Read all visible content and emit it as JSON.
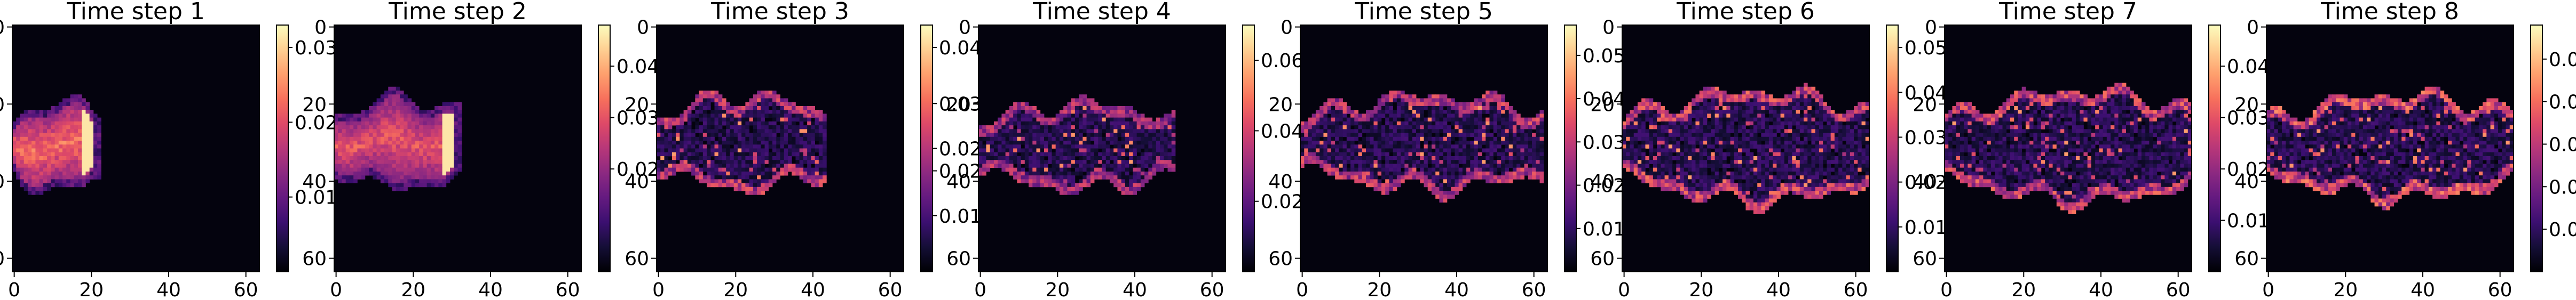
{
  "chart_data": {
    "type": "heatmap",
    "colormap": "magma",
    "grid": false,
    "panels": [
      {
        "title": "Time step 1",
        "xticks": [
          "0",
          "20",
          "40",
          "60"
        ],
        "yticks": [
          "0",
          "20",
          "40",
          "60"
        ],
        "xlim": [
          -0.5,
          63.5
        ],
        "ylim": [
          63.5,
          -0.5
        ],
        "colorbar_ticks": [
          "0.01",
          "0.02",
          "0.03"
        ],
        "colorbar_tick_values": [
          0.01,
          0.02,
          0.03
        ],
        "colorbar_range": [
          0.0,
          0.033
        ],
        "plume": {
          "centroid_x": 6,
          "centroid_y": 31,
          "front_x": 20,
          "half_width": 9,
          "intensity": 0.88,
          "type": "blob"
        }
      },
      {
        "title": "Time step 2",
        "xticks": [
          "0",
          "20",
          "40",
          "60"
        ],
        "yticks": [
          "0",
          "20",
          "40",
          "60"
        ],
        "xlim": [
          -0.5,
          63.5
        ],
        "ylim": [
          63.5,
          -0.5
        ],
        "colorbar_ticks": [
          "0.02",
          "0.03",
          "0.04"
        ],
        "colorbar_tick_values": [
          0.02,
          0.03,
          0.04
        ],
        "colorbar_range": [
          0.0,
          0.048
        ],
        "plume": {
          "centroid_x": 14,
          "centroid_y": 30,
          "front_x": 30,
          "half_width": 9,
          "intensity": 0.8,
          "type": "blob"
        }
      },
      {
        "title": "Time step 3",
        "xticks": [
          "0",
          "20",
          "40",
          "60"
        ],
        "yticks": [
          "0",
          "20",
          "40",
          "60"
        ],
        "xlim": [
          -0.5,
          63.5
        ],
        "ylim": [
          63.5,
          -0.5
        ],
        "colorbar_ticks": [
          "0.01",
          "0.02",
          "0.02",
          "0.03",
          "0.04"
        ],
        "colorbar_tick_values": [
          0.01,
          0.018,
          0.022,
          0.03,
          0.04
        ],
        "colorbar_range": [
          0.0,
          0.044
        ],
        "plume": {
          "centroid_x": 20,
          "centroid_y": 30,
          "front_x": 41,
          "half_width": 10,
          "intensity": 0.6,
          "type": "edges"
        }
      },
      {
        "title": "Time step 4",
        "xticks": [
          "0",
          "20",
          "40",
          "60"
        ],
        "yticks": [
          "0",
          "20",
          "40",
          "60"
        ],
        "xlim": [
          -0.5,
          63.5
        ],
        "ylim": [
          63.5,
          -0.5
        ],
        "colorbar_ticks": [
          "0.02",
          "0.04",
          "0.06"
        ],
        "colorbar_tick_values": [
          0.02,
          0.04,
          0.06
        ],
        "colorbar_range": [
          0.0,
          0.07
        ],
        "plume": {
          "centroid_x": 28,
          "centroid_y": 31,
          "front_x": 48,
          "half_width": 9,
          "intensity": 0.55,
          "type": "edges"
        }
      },
      {
        "title": "Time step 5",
        "xticks": [
          "0",
          "20",
          "40",
          "60"
        ],
        "yticks": [
          "0",
          "20",
          "40",
          "60"
        ],
        "xlim": [
          -0.5,
          63.5
        ],
        "ylim": [
          63.5,
          -0.5
        ],
        "colorbar_ticks": [
          "0.01",
          "0.02",
          "0.03",
          "0.04",
          "0.05"
        ],
        "colorbar_tick_values": [
          0.01,
          0.02,
          0.03,
          0.04,
          0.05
        ],
        "colorbar_range": [
          0.0,
          0.057
        ],
        "plume": {
          "centroid_x": 32,
          "centroid_y": 30,
          "front_x": 60,
          "half_width": 10,
          "intensity": 0.6,
          "type": "edges"
        }
      },
      {
        "title": "Time step 6",
        "xticks": [
          "0",
          "20",
          "40",
          "60"
        ],
        "yticks": [
          "0",
          "20",
          "40",
          "60"
        ],
        "xlim": [
          -0.5,
          63.5
        ],
        "ylim": [
          63.5,
          -0.5
        ],
        "colorbar_ticks": [
          "0.01",
          "0.02",
          "0.03",
          "0.04",
          "0.05"
        ],
        "colorbar_tick_values": [
          0.01,
          0.02,
          0.03,
          0.04,
          0.05
        ],
        "colorbar_range": [
          0.0,
          0.055
        ],
        "plume": {
          "centroid_x": 34,
          "centroid_y": 31,
          "front_x": 62,
          "half_width": 12,
          "intensity": 0.65,
          "type": "edges"
        }
      },
      {
        "title": "Time step 7",
        "xticks": [
          "0",
          "20",
          "40",
          "60"
        ],
        "yticks": [
          "0",
          "20",
          "40",
          "60"
        ],
        "xlim": [
          -0.5,
          63.5
        ],
        "ylim": [
          63.5,
          -0.5
        ],
        "colorbar_ticks": [
          "0.01",
          "0.02",
          "0.03",
          "0.04"
        ],
        "colorbar_tick_values": [
          0.01,
          0.02,
          0.03,
          0.04
        ],
        "colorbar_range": [
          0.0,
          0.048
        ],
        "plume": {
          "centroid_x": 34,
          "centroid_y": 31,
          "front_x": 63,
          "half_width": 12,
          "intensity": 0.65,
          "type": "edges"
        }
      },
      {
        "title": "Time step 8",
        "xticks": [
          "0",
          "20",
          "40",
          "60"
        ],
        "yticks": [
          "0",
          "20",
          "40",
          "60"
        ],
        "xlim": [
          -0.5,
          63.5
        ],
        "ylim": [
          63.5,
          -0.5
        ],
        "colorbar_ticks": [
          "0.01",
          "0.02",
          "0.03",
          "0.04",
          "0.05"
        ],
        "colorbar_tick_values": [
          0.01,
          0.02,
          0.03,
          0.04,
          0.05
        ],
        "colorbar_range": [
          0.0,
          0.058
        ],
        "plume": {
          "centroid_x": 34,
          "centroid_y": 31,
          "front_x": 63,
          "half_width": 11,
          "intensity": 0.7,
          "type": "edges"
        }
      }
    ]
  }
}
